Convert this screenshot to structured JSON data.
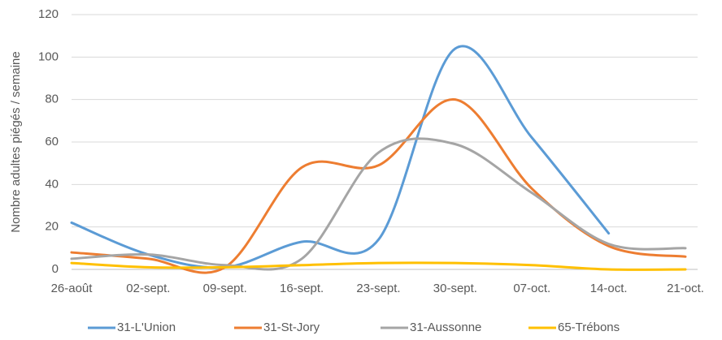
{
  "chart_data": {
    "type": "line",
    "ylabel": "Nombre adultes piégés / semaine",
    "categories": [
      "26-août",
      "02-sept.",
      "09-sept.",
      "16-sept.",
      "23-sept.",
      "30-sept.",
      "07-oct.",
      "14-oct.",
      "21-oct."
    ],
    "series": [
      {
        "name": "31-L'Union",
        "color": "#5b9bd5",
        "values": [
          22,
          7,
          1,
          13,
          14,
          104,
          62,
          17,
          null
        ]
      },
      {
        "name": "31-St-Jory",
        "color": "#ed7d31",
        "values": [
          8,
          5,
          1,
          48,
          49,
          80,
          38,
          11,
          6
        ]
      },
      {
        "name": "31-Aussonne",
        "color": "#a5a5a5",
        "values": [
          5,
          7,
          2,
          5,
          55,
          59,
          36,
          12,
          10
        ]
      },
      {
        "name": "65-Trébons",
        "color": "#ffc000",
        "values": [
          3,
          1,
          1,
          2,
          3,
          3,
          2,
          0,
          0
        ]
      }
    ],
    "ylim": [
      0,
      120
    ],
    "yticks": [
      0,
      20,
      40,
      60,
      80,
      100,
      120
    ],
    "grid": true,
    "smooth": true,
    "legend": "bottom"
  }
}
